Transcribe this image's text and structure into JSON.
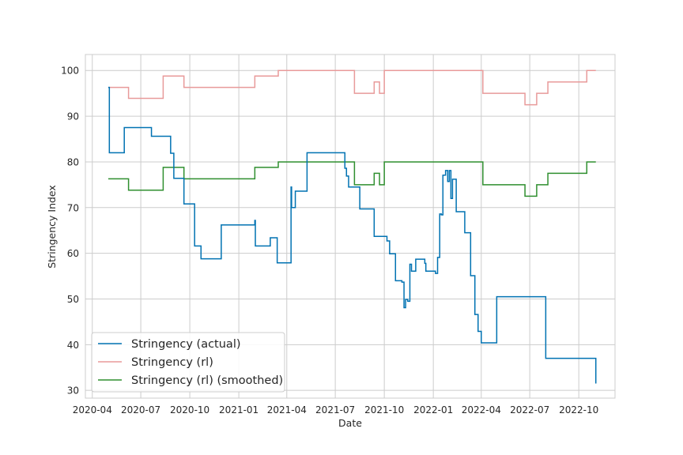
{
  "chart_data": {
    "type": "line",
    "xlabel": "Date",
    "ylabel": "Stringency Index",
    "x_tick_labels": [
      "2020-04",
      "2020-07",
      "2020-10",
      "2021-01",
      "2021-04",
      "2021-07",
      "2021-10",
      "2022-01",
      "2022-04",
      "2022-07",
      "2022-10"
    ],
    "y_ticks": [
      30,
      40,
      50,
      60,
      70,
      80,
      90,
      100
    ],
    "xlim": [
      "2020-03-19",
      "2022-12-08"
    ],
    "ylim": [
      28.3,
      103.5
    ],
    "grid": true,
    "legend_position": "lower-left",
    "series": [
      {
        "name": "Stringency (actual)",
        "color": "#0072b2",
        "step": true,
        "x": [
          "2020-05-01",
          "2020-05-03",
          "2020-05-31",
          "2020-07-21",
          "2020-08-26",
          "2020-09-01",
          "2020-09-04",
          "2020-09-20",
          "2020-10-10",
          "2020-10-22",
          "2020-11-29",
          "2021-01-31",
          "2021-02-01",
          "2021-03-01",
          "2021-03-14",
          "2021-04-09",
          "2021-04-10",
          "2021-04-17",
          "2021-05-09",
          "2021-07-19",
          "2021-07-22",
          "2021-07-26",
          "2021-08-16",
          "2021-09-12",
          "2021-10-06",
          "2021-10-11",
          "2021-10-22",
          "2021-11-03",
          "2021-11-07",
          "2021-11-10",
          "2021-11-14",
          "2021-11-18",
          "2021-11-21",
          "2021-11-29",
          "2021-12-16",
          "2021-12-18",
          "2022-01-05",
          "2022-01-09",
          "2022-01-13",
          "2022-01-16",
          "2022-01-19",
          "2022-01-24",
          "2022-01-28",
          "2022-01-31",
          "2022-02-03",
          "2022-02-06",
          "2022-02-13",
          "2022-03-01",
          "2022-03-12",
          "2022-03-20",
          "2022-03-22",
          "2022-03-26",
          "2022-04-01",
          "2022-04-30",
          "2022-07-31",
          "2022-11-02"
        ],
        "y": [
          96.3,
          82.0,
          87.5,
          85.6,
          81.9,
          76.4,
          76.4,
          70.8,
          61.6,
          58.8,
          66.2,
          67.2,
          61.6,
          63.4,
          57.9,
          74.5,
          70.0,
          73.6,
          82.0,
          78.6,
          76.9,
          74.5,
          69.7,
          63.7,
          62.7,
          59.9,
          54.0,
          53.7,
          48.1,
          49.9,
          49.5,
          57.6,
          56.1,
          58.7,
          57.8,
          56.1,
          55.6,
          59.1,
          68.6,
          68.4,
          77.1,
          78.1,
          75.7,
          78.1,
          72.0,
          76.2,
          69.1,
          64.5,
          55.1,
          46.6,
          46.6,
          42.9,
          40.4,
          50.5,
          37.0,
          31.5
        ]
      },
      {
        "name": "Stringency (rl)",
        "color": "#e89a9a",
        "step": true,
        "x": [
          "2020-05-01",
          "2020-06-08",
          "2020-08-12",
          "2020-09-20",
          "2021-01-31",
          "2021-03-16",
          "2021-08-06",
          "2021-09-12",
          "2021-09-22",
          "2021-10-01",
          "2022-04-04",
          "2022-06-22",
          "2022-07-14",
          "2022-08-04",
          "2022-10-16",
          "2022-11-02"
        ],
        "y": [
          96.3,
          93.9,
          98.8,
          96.3,
          98.8,
          100.0,
          95.0,
          97.5,
          95.0,
          100.0,
          95.0,
          92.5,
          95.0,
          97.5,
          100.0,
          100.0
        ]
      },
      {
        "name": "Stringency (rl) (smoothed)",
        "color": "#2f8f2f",
        "step": true,
        "x": [
          "2020-05-01",
          "2020-06-08",
          "2020-08-12",
          "2020-09-20",
          "2021-01-31",
          "2021-03-16",
          "2021-08-06",
          "2021-09-12",
          "2021-09-22",
          "2021-10-01",
          "2022-04-04",
          "2022-06-22",
          "2022-07-14",
          "2022-08-04",
          "2022-10-16",
          "2022-11-02"
        ],
        "y": [
          76.3,
          73.8,
          78.8,
          76.3,
          78.8,
          80.0,
          75.0,
          77.5,
          75.0,
          80.0,
          75.0,
          72.5,
          75.0,
          77.5,
          80.0,
          80.0
        ]
      }
    ]
  }
}
